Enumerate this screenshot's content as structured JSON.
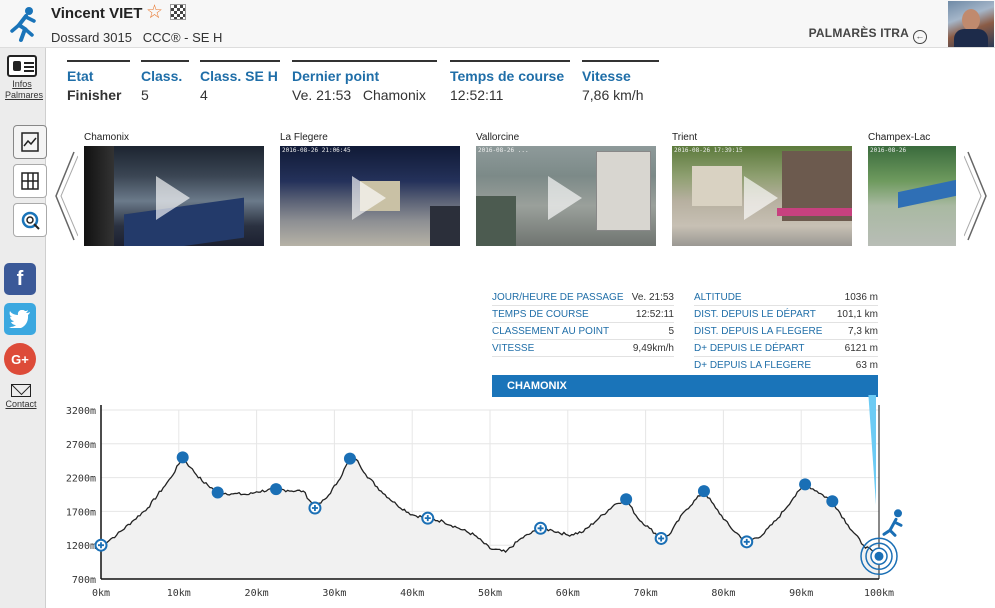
{
  "header": {
    "runner_name": "Vincent VIET",
    "bib": "Dossard 3015   CCC® - SE H",
    "palmares_label": "PALMARÈS ITRA",
    "icons": [
      "runner-logo-icon",
      "star-icon",
      "finish-flag-icon",
      "circle-arrow-icon"
    ]
  },
  "sidebar": {
    "infos_label_1": "Infos",
    "infos_label_2": "Palmares",
    "contact_label": "Contact",
    "social": [
      "f",
      "t",
      "G+"
    ]
  },
  "stats": [
    {
      "header": "Etat",
      "value": "Finisher"
    },
    {
      "header": "Class.",
      "value": "5"
    },
    {
      "header": "Class. SE H",
      "value": "4"
    },
    {
      "header": "Dernier point",
      "value": "Ve. 21:53   Chamonix"
    },
    {
      "header": "Temps de course",
      "value": "12:52:11"
    },
    {
      "header": "Vitesse",
      "value": "7,86 km/h"
    }
  ],
  "gallery": [
    {
      "caption": "Chamonix",
      "stamp": ""
    },
    {
      "caption": "La Flegere",
      "stamp": "2016-08-26 21:06:45"
    },
    {
      "caption": "Vallorcine",
      "stamp": "2016-08-26 ..."
    },
    {
      "caption": "Trient",
      "stamp": "2016-08-26 17:39:15"
    },
    {
      "caption": "Champex-Lac",
      "stamp": "2016-08-26"
    }
  ],
  "checkpoint": {
    "name": "CHAMONIX",
    "left": [
      {
        "key": "JOUR/HEURE DE PASSAGE",
        "value": "Ve. 21:53"
      },
      {
        "key": "TEMPS DE COURSE",
        "value": "12:52:11"
      },
      {
        "key": "CLASSEMENT AU POINT",
        "value": "5"
      },
      {
        "key": "VITESSE",
        "value": "9,49km/h"
      }
    ],
    "right": [
      {
        "key": "ALTITUDE",
        "value": "1036 m"
      },
      {
        "key": "DIST. DEPUIS LE DÉPART",
        "value": "101,1 km"
      },
      {
        "key": "DIST. DEPUIS LA FLEGERE",
        "value": "7,3 km"
      },
      {
        "key": "D+ DEPUIS LE DÉPART",
        "value": "6121 m"
      },
      {
        "key": "D+ DEPUIS LA FLEGERE",
        "value": "63 m"
      }
    ]
  },
  "colors": {
    "accent": "#1a74b9",
    "header_blue": "#1f6ea8",
    "marker": "#1a6fb5",
    "cursor": "#6ccbf4"
  },
  "chart_data": {
    "type": "area",
    "x_unit": "km",
    "y_unit": "m",
    "xlim": [
      0,
      101
    ],
    "ylim": [
      700,
      3200
    ],
    "x_ticks": [
      "0km",
      "10km",
      "20km",
      "30km",
      "40km",
      "50km",
      "60km",
      "70km",
      "80km",
      "90km",
      "100km"
    ],
    "y_ticks": [
      "3200m",
      "2700m",
      "2200m",
      "1700m",
      "1200m",
      "700m"
    ],
    "x_tick_values": [
      0,
      10,
      20,
      30,
      40,
      50,
      60,
      70,
      80,
      90,
      100
    ],
    "y_tick_values": [
      3200,
      2700,
      2200,
      1700,
      1200,
      700
    ],
    "profile": [
      [
        0,
        1200
      ],
      [
        2,
        1350
      ],
      [
        4,
        1550
      ],
      [
        6,
        1750
      ],
      [
        8,
        2050
      ],
      [
        9,
        2200
      ],
      [
        10.5,
        2500
      ],
      [
        11.5,
        2350
      ],
      [
        13,
        2150
      ],
      [
        15,
        1980
      ],
      [
        17,
        1960
      ],
      [
        19,
        1950
      ],
      [
        20,
        1990
      ],
      [
        22.5,
        2030
      ],
      [
        24,
        2010
      ],
      [
        26,
        2000
      ],
      [
        27.5,
        1750
      ],
      [
        29,
        1900
      ],
      [
        30.5,
        2150
      ],
      [
        32,
        2480
      ],
      [
        33,
        2450
      ],
      [
        34,
        2250
      ],
      [
        36,
        2000
      ],
      [
        38,
        1800
      ],
      [
        40,
        1650
      ],
      [
        42,
        1600
      ],
      [
        44,
        1550
      ],
      [
        46,
        1450
      ],
      [
        48,
        1350
      ],
      [
        50,
        1150
      ],
      [
        52,
        1100
      ],
      [
        54,
        1300
      ],
      [
        56.5,
        1450
      ],
      [
        58,
        1420
      ],
      [
        60,
        1350
      ],
      [
        62,
        1400
      ],
      [
        64,
        1600
      ],
      [
        66,
        1800
      ],
      [
        67.5,
        1880
      ],
      [
        69,
        1600
      ],
      [
        70.5,
        1450
      ],
      [
        72,
        1300
      ],
      [
        73,
        1350
      ],
      [
        75,
        1700
      ],
      [
        77.5,
        2000
      ],
      [
        79,
        1750
      ],
      [
        81,
        1450
      ],
      [
        83,
        1250
      ],
      [
        85,
        1350
      ],
      [
        87,
        1600
      ],
      [
        89,
        1900
      ],
      [
        90.5,
        2100
      ],
      [
        92,
        2000
      ],
      [
        94,
        1850
      ],
      [
        96,
        1500
      ],
      [
        98,
        1200
      ],
      [
        100,
        1036
      ]
    ],
    "checkpoints": [
      {
        "km": 0,
        "alt": 1200,
        "style": "open"
      },
      {
        "km": 10.5,
        "alt": 2500,
        "style": "filled"
      },
      {
        "km": 15,
        "alt": 1980,
        "style": "filled"
      },
      {
        "km": 22.5,
        "alt": 2030,
        "style": "filled"
      },
      {
        "km": 27.5,
        "alt": 1750,
        "style": "open"
      },
      {
        "km": 32,
        "alt": 2480,
        "style": "filled"
      },
      {
        "km": 42,
        "alt": 1600,
        "style": "open"
      },
      {
        "km": 56.5,
        "alt": 1450,
        "style": "open"
      },
      {
        "km": 67.5,
        "alt": 1880,
        "style": "filled"
      },
      {
        "km": 72,
        "alt": 1300,
        "style": "open"
      },
      {
        "km": 77.5,
        "alt": 2000,
        "style": "filled"
      },
      {
        "km": 83,
        "alt": 1250,
        "style": "open"
      },
      {
        "km": 90.5,
        "alt": 2100,
        "style": "filled"
      },
      {
        "km": 94,
        "alt": 1850,
        "style": "filled"
      },
      {
        "km": 100,
        "alt": 1036,
        "style": "finish"
      }
    ]
  }
}
